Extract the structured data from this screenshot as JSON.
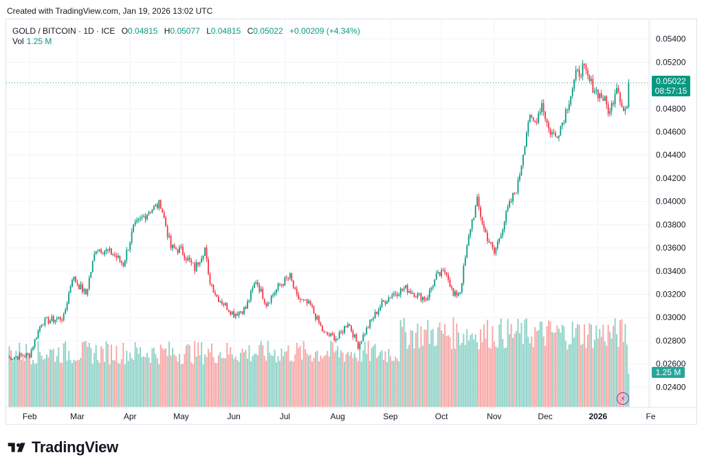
{
  "header": {
    "created_text": "Created with TradingView.com, Jan 19, 2026 13:02 UTC"
  },
  "legend": {
    "symbol": "GOLD / BITCOIN · 1D · ICE",
    "o_label": "O",
    "o_value": "0.04815",
    "h_label": "H",
    "h_value": "0.05077",
    "l_label": "L",
    "l_value": "0.04815",
    "c_label": "C",
    "c_value": "0.05022",
    "change": "+0.00209 (+4.34%)",
    "vol_label": "Vol",
    "vol_value": "1.25 M"
  },
  "price_tag": {
    "price": "0.05022",
    "countdown": "08:57:15"
  },
  "vol_tag": "1.25 M",
  "brand": {
    "name": "TradingView"
  },
  "colors": {
    "up": "#089981",
    "down": "#f23645",
    "vol_up": "#8fd3c8",
    "vol_down": "#f7a9a7",
    "grid": "#f0f3fa",
    "brand_mark": "#131722"
  },
  "chart_data": {
    "type": "candlestick",
    "title": "GOLD / BITCOIN · 1D · ICE",
    "ylim": [
      0.0223,
      0.0557
    ],
    "y_ticks": [
      "0.05400",
      "0.05200",
      "0.05000",
      "0.04800",
      "0.04600",
      "0.04400",
      "0.04200",
      "0.04000",
      "0.03800",
      "0.03600",
      "0.03400",
      "0.03200",
      "0.03000",
      "0.02800",
      "0.02600",
      "0.02400"
    ],
    "x_ticks": [
      {
        "label": "Feb",
        "day": 13
      },
      {
        "label": "Mar",
        "day": 41
      },
      {
        "label": "Apr",
        "day": 72
      },
      {
        "label": "May",
        "day": 102
      },
      {
        "label": "Jun",
        "day": 133
      },
      {
        "label": "Jul",
        "day": 163
      },
      {
        "label": "Aug",
        "day": 194
      },
      {
        "label": "Sep",
        "day": 225
      },
      {
        "label": "Oct",
        "day": 255
      },
      {
        "label": "Nov",
        "day": 286
      },
      {
        "label": "Dec",
        "day": 316
      },
      {
        "label": "2026",
        "day": 347,
        "bold": true
      },
      {
        "label": "Fe",
        "day": 378
      }
    ],
    "last_close": 0.05022,
    "volume_ylim": [
      0,
      3.9
    ],
    "close_anchors": [
      [
        0,
        0.0265
      ],
      [
        13,
        0.0268
      ],
      [
        20,
        0.0296
      ],
      [
        33,
        0.03
      ],
      [
        38,
        0.0335
      ],
      [
        46,
        0.032
      ],
      [
        52,
        0.036
      ],
      [
        62,
        0.0355
      ],
      [
        68,
        0.0346
      ],
      [
        74,
        0.0377
      ],
      [
        83,
        0.0392
      ],
      [
        90,
        0.0398
      ],
      [
        96,
        0.036
      ],
      [
        102,
        0.0358
      ],
      [
        110,
        0.0342
      ],
      [
        116,
        0.036
      ],
      [
        118,
        0.0335
      ],
      [
        123,
        0.0318
      ],
      [
        133,
        0.0303
      ],
      [
        140,
        0.0308
      ],
      [
        146,
        0.0332
      ],
      [
        152,
        0.0312
      ],
      [
        160,
        0.0328
      ],
      [
        166,
        0.0335
      ],
      [
        170,
        0.0317
      ],
      [
        178,
        0.031
      ],
      [
        186,
        0.0286
      ],
      [
        194,
        0.0282
      ],
      [
        200,
        0.0296
      ],
      [
        206,
        0.0276
      ],
      [
        214,
        0.0298
      ],
      [
        220,
        0.0312
      ],
      [
        226,
        0.032
      ],
      [
        234,
        0.0325
      ],
      [
        240,
        0.032
      ],
      [
        246,
        0.0316
      ],
      [
        252,
        0.0335
      ],
      [
        258,
        0.034
      ],
      [
        262,
        0.0318
      ],
      [
        266,
        0.0323
      ],
      [
        272,
        0.0378
      ],
      [
        276,
        0.04
      ],
      [
        280,
        0.0376
      ],
      [
        286,
        0.0355
      ],
      [
        290,
        0.0374
      ],
      [
        294,
        0.0393
      ],
      [
        300,
        0.0415
      ],
      [
        306,
        0.047
      ],
      [
        310,
        0.0468
      ],
      [
        314,
        0.0485
      ],
      [
        318,
        0.0462
      ],
      [
        322,
        0.0456
      ],
      [
        326,
        0.0468
      ],
      [
        330,
        0.0488
      ],
      [
        334,
        0.0508
      ],
      [
        338,
        0.0515
      ],
      [
        342,
        0.0503
      ],
      [
        346,
        0.0495
      ],
      [
        350,
        0.0489
      ],
      [
        354,
        0.0476
      ],
      [
        358,
        0.0502
      ],
      [
        362,
        0.0478
      ],
      [
        364,
        0.0481
      ],
      [
        365,
        0.0502
      ]
    ]
  }
}
